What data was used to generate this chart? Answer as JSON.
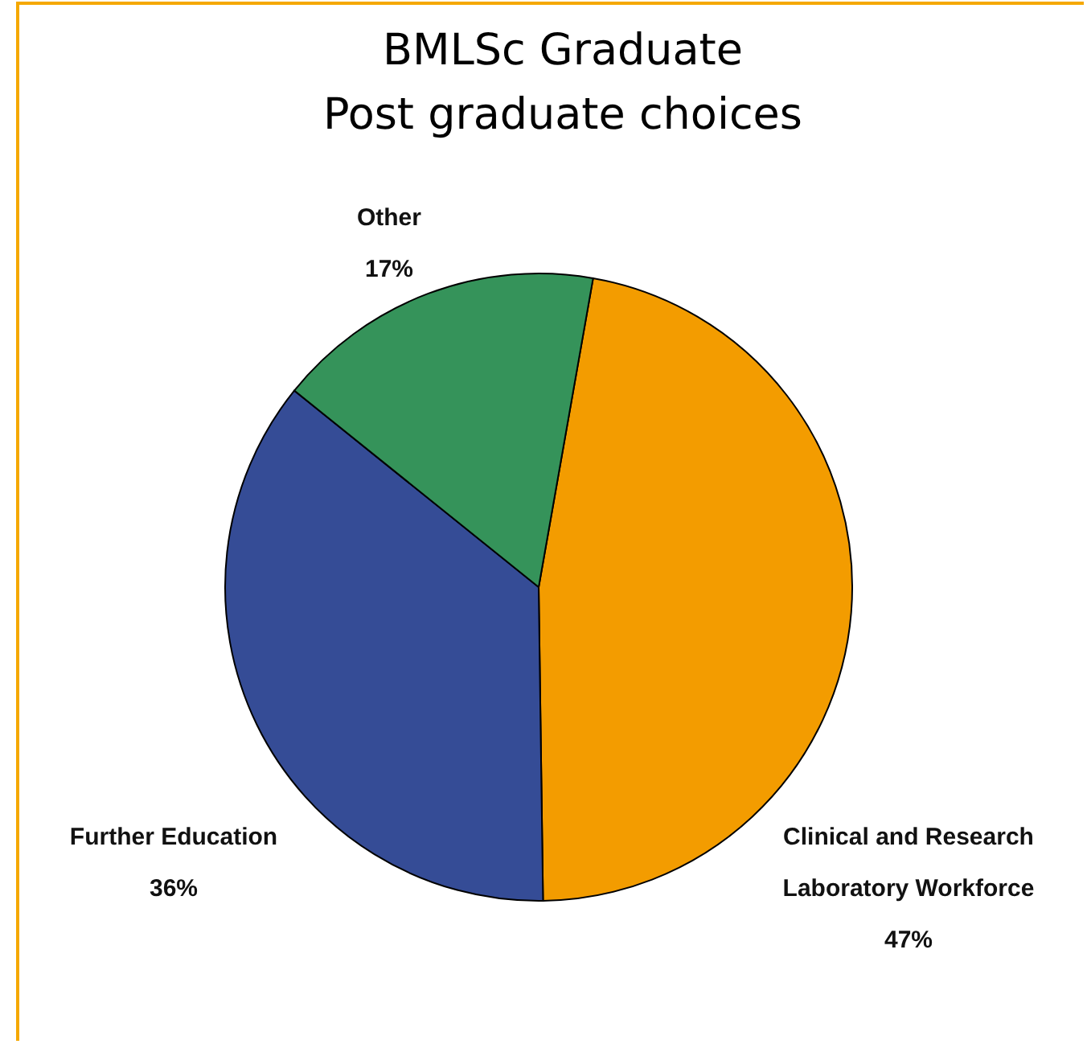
{
  "chart_data": {
    "type": "pie",
    "title": "BMLSc Graduate",
    "subtitle": "Post graduate choices",
    "categories": [
      "Clinical and Research Laboratory Workforce",
      "Further Education",
      "Other"
    ],
    "values": [
      47,
      36,
      17
    ],
    "value_labels": [
      "47%",
      "36%",
      "17%"
    ],
    "colors": [
      "#f39c00",
      "#354c96",
      "#35935a"
    ]
  }
}
